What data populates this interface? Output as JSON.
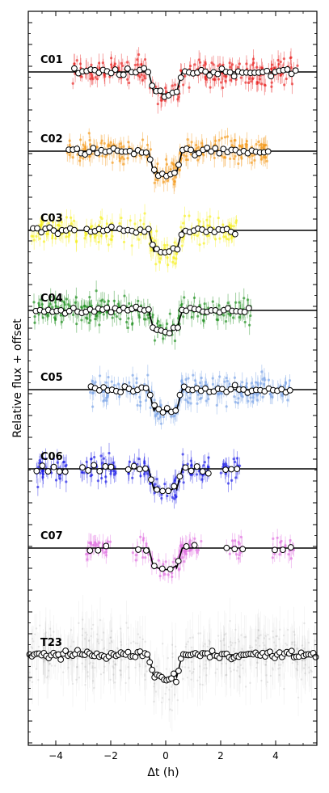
{
  "chart_data": {
    "type": "scatter",
    "title": "",
    "xlabel": "Δt (h)",
    "ylabel": "Relative flux + offset",
    "xlim": [
      -5.0,
      5.5
    ],
    "xticks": [
      -4,
      -2,
      0,
      2,
      4
    ],
    "xtick_labels": [
      "−4",
      "−2",
      "0",
      "2",
      "4"
    ],
    "grid": false,
    "transit": {
      "ingress_start": -0.62,
      "full_start": -0.42,
      "full_end": 0.38,
      "egress_end": 0.6
    },
    "series": [
      {
        "name": "C01",
        "color": "#e8201e",
        "x_range": [
          -3.4,
          4.8
        ],
        "gaps": [],
        "depth": 0.38,
        "point_scatter": 0.27,
        "binned_scatter": 0.05,
        "binned_count": 55
      },
      {
        "name": "C02",
        "color": "#f49a1a",
        "x_range": [
          -3.6,
          3.8
        ],
        "gaps": [],
        "depth": 0.4,
        "point_scatter": 0.24,
        "binned_scatter": 0.05,
        "binned_count": 50
      },
      {
        "name": "C03",
        "color": "#f6f01c",
        "x_range": [
          -4.9,
          2.6
        ],
        "gaps": [
          [
            -3.2,
            -3.0
          ],
          [
            -1.9,
            -1.7
          ]
        ],
        "depth": 0.38,
        "point_scatter": 0.25,
        "binned_scatter": 0.05,
        "binned_count": 50
      },
      {
        "name": "C04",
        "color": "#1b8d1b",
        "x_range": [
          -4.8,
          3.1
        ],
        "gaps": [],
        "depth": 0.37,
        "point_scatter": 0.26,
        "binned_scatter": 0.05,
        "binned_count": 52
      },
      {
        "name": "C05",
        "color": "#7aa3e6",
        "x_range": [
          -2.8,
          4.6
        ],
        "gaps": [],
        "depth": 0.38,
        "point_scatter": 0.28,
        "binned_scatter": 0.05,
        "binned_count": 48
      },
      {
        "name": "C06",
        "color": "#1c1ce6",
        "x_range": [
          -4.8,
          2.7
        ],
        "gaps": [
          [
            -3.6,
            -3.1
          ],
          [
            -1.8,
            -1.4
          ],
          [
            1.6,
            2.0
          ]
        ],
        "depth": 0.38,
        "point_scatter": 0.26,
        "binned_scatter": 0.05,
        "binned_count": 36
      },
      {
        "name": "C07",
        "color": "#e070e0",
        "x_range": [
          -2.9,
          4.7
        ],
        "gaps": [
          [
            -2.0,
            -1.2
          ],
          [
            1.3,
            2.2
          ],
          [
            2.8,
            3.8
          ]
        ],
        "depth": 0.37,
        "point_scatter": 0.23,
        "binned_scatter": 0.05,
        "binned_count": 26
      },
      {
        "name": "T23",
        "color": "#9a9a9a",
        "x_range": [
          -5.0,
          5.5
        ],
        "gaps": [],
        "depth": 0.42,
        "point_scatter": 0.55,
        "binned_scatter": 0.05,
        "binned_count": 120
      }
    ]
  }
}
